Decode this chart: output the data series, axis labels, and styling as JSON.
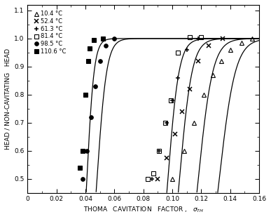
{
  "title": "",
  "xlabel": "THOMA   CAVITATION   FACTOR ,   σₜᴴ",
  "ylabel": "HEAD / NON-CAVITATING   HEAD",
  "xlim": [
    0,
    0.16
  ],
  "ylim": [
    0.45,
    1.12
  ],
  "xticks": [
    0,
    0.02,
    0.04,
    0.06,
    0.08,
    0.1,
    0.12,
    0.14,
    0.16
  ],
  "yticks": [
    0.5,
    0.6,
    0.7,
    0.8,
    0.9,
    1.0,
    1.1
  ],
  "series": [
    {
      "label": "10.4 °C",
      "marker": "^",
      "filled": false,
      "sigma_c": 0.1325,
      "steepness": 180,
      "data_x": [
        0.1,
        0.108,
        0.115,
        0.122,
        0.128,
        0.134,
        0.14,
        0.148,
        0.155
      ],
      "data_y": [
        0.5,
        0.6,
        0.7,
        0.8,
        0.87,
        0.92,
        0.96,
        0.985,
        1.0
      ]
    },
    {
      "label": "52.4 °C",
      "marker": "x",
      "filled": true,
      "sigma_c": 0.118,
      "steepness": 200,
      "data_x": [
        0.09,
        0.096,
        0.102,
        0.107,
        0.112,
        0.118,
        0.125,
        0.135
      ],
      "data_y": [
        0.5,
        0.575,
        0.66,
        0.74,
        0.82,
        0.92,
        0.975,
        1.0
      ]
    },
    {
      "label": "61.3 °C",
      "marker": "+",
      "filled": true,
      "sigma_c": 0.105,
      "steepness": 230,
      "data_x": [
        0.086,
        0.091,
        0.096,
        0.1,
        0.104,
        0.11,
        0.118
      ],
      "data_y": [
        0.5,
        0.6,
        0.7,
        0.78,
        0.86,
        0.96,
        1.0
      ]
    },
    {
      "label": "81.4 °C",
      "marker": "s",
      "filled": false,
      "sigma_c": 0.097,
      "steepness": 260,
      "data_x": [
        0.083,
        0.087,
        0.091,
        0.095,
        0.099,
        0.104,
        0.112,
        0.12
      ],
      "data_y": [
        0.5,
        0.52,
        0.6,
        0.7,
        0.78,
        0.95,
        1.005,
        1.005
      ]
    },
    {
      "label": "98.5 °C",
      "marker": "o",
      "filled": true,
      "sigma_c": 0.048,
      "steepness": 300,
      "data_x": [
        0.038,
        0.041,
        0.044,
        0.047,
        0.05,
        0.054,
        0.06
      ],
      "data_y": [
        0.5,
        0.6,
        0.72,
        0.83,
        0.92,
        0.975,
        1.0
      ]
    },
    {
      "label": "110.6 °C",
      "marker": "s",
      "filled": true,
      "sigma_c": 0.041,
      "steepness": 400,
      "data_x": [
        0.036,
        0.038,
        0.04,
        0.042,
        0.043,
        0.046,
        0.052
      ],
      "data_y": [
        0.54,
        0.6,
        0.8,
        0.92,
        0.965,
        0.995,
        1.0
      ]
    }
  ],
  "background_color": "#ffffff",
  "line_color": "black",
  "fontsize": 7.0
}
